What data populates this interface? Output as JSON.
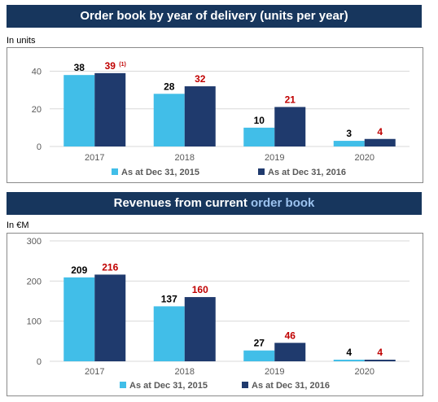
{
  "chart_data": [
    {
      "type": "bar",
      "title": "Order book by year of delivery (units per year)",
      "unit_label": "In units",
      "categories": [
        "2017",
        "2018",
        "2019",
        "2020"
      ],
      "ylim": [
        0,
        45
      ],
      "yticks": [
        0,
        20,
        40
      ],
      "grid": true,
      "legend_position": "bottom",
      "series": [
        {
          "name": "As at Dec 31, 2015",
          "color": "#41bee8",
          "label_color": "#000000",
          "values": [
            38,
            28,
            10,
            3
          ],
          "labels": [
            "38",
            "28",
            "10",
            "3"
          ]
        },
        {
          "name": "As at Dec 31, 2016",
          "color": "#1f3a6d",
          "label_color": "#c00000",
          "values": [
            39,
            32,
            21,
            4
          ],
          "labels": [
            "39",
            "32",
            "21",
            "4"
          ]
        }
      ],
      "annotations": [
        {
          "text": "(1)",
          "series": 1,
          "index": 0
        }
      ]
    },
    {
      "type": "bar",
      "title": "Revenues from current order book",
      "title_plain": "Revenues from current",
      "title_highlight": "order book",
      "unit_label": "In €M",
      "categories": [
        "2017",
        "2018",
        "2019",
        "2020"
      ],
      "ylim": [
        0,
        300
      ],
      "yticks": [
        0,
        100,
        200,
        300
      ],
      "grid": true,
      "legend_position": "bottom",
      "series": [
        {
          "name": "As at Dec 31, 2015",
          "color": "#41bee8",
          "label_color": "#000000",
          "values": [
            209,
            137,
            27,
            4
          ],
          "labels": [
            "209",
            "137",
            "27",
            "4"
          ]
        },
        {
          "name": "As at Dec 31, 2016",
          "color": "#1f3a6d",
          "label_color": "#c00000",
          "values": [
            216,
            160,
            46,
            4
          ],
          "labels": [
            "216",
            "160",
            "46",
            "4"
          ]
        }
      ]
    }
  ]
}
